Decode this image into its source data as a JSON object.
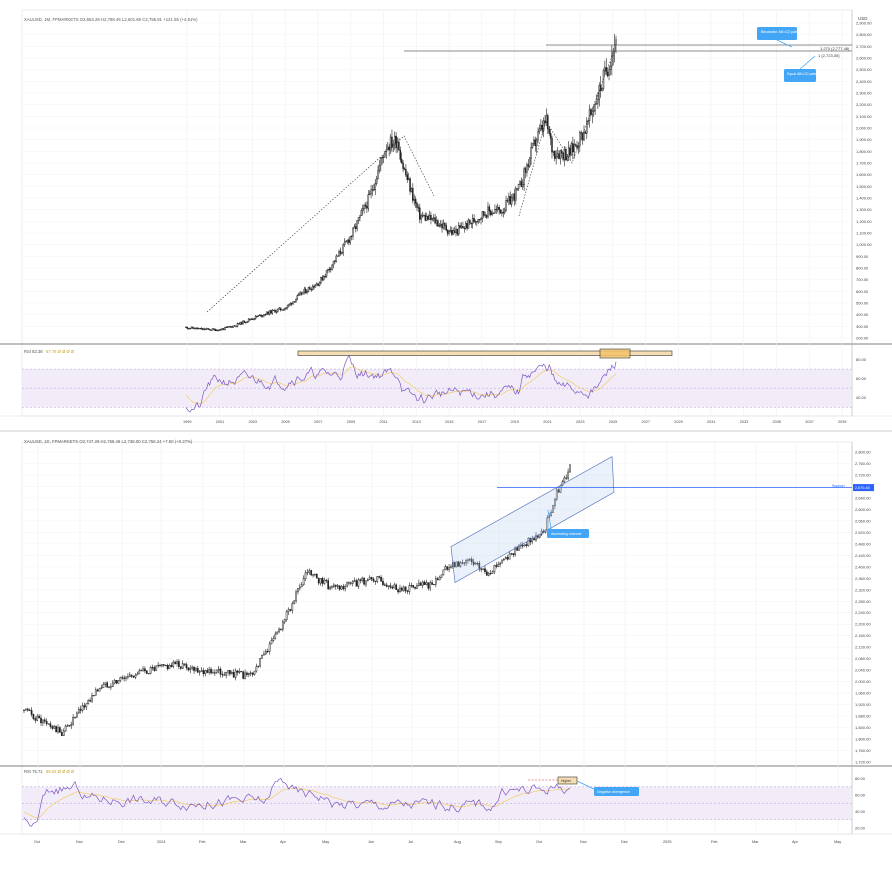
{
  "panel_top": {
    "header": "XAUUSD, 1M, FPMARKETS  O2,653.28  H2,798.46  L2,601.69  C2,755.91  +121.55 (+4.61%)",
    "currency": "USD",
    "rsi_label": "RSI  82.36",
    "rsi_extra": "67.76  Ø  Ø  Ø  Ø",
    "fib_label_1": "1.270 (2,777.48)",
    "fib_label_2": "1 (2,723.35)",
    "callout_1": "Bitcoinator AB=CD pattern",
    "callout_2": "Equal AB=CD pattern",
    "price_axis": [
      "2,900.00",
      "2,800.00",
      "2,700.00",
      "2,600.00",
      "2,500.00",
      "2,400.00",
      "2,300.00",
      "2,200.00",
      "2,100.00",
      "2,000.00",
      "1,900.00",
      "1,800.00",
      "1,700.00",
      "1,600.00",
      "1,500.00",
      "1,400.00",
      "1,300.00",
      "1,200.00",
      "1,100.00",
      "1,000.00",
      "900.00",
      "800.00",
      "700.00",
      "600.00",
      "500.00",
      "400.00",
      "300.00",
      "200.00"
    ],
    "rsi_axis": [
      "80.00",
      "60.00",
      "40.00"
    ],
    "time_axis": [
      "1999",
      "2001",
      "2003",
      "2005",
      "2007",
      "2009",
      "2011",
      "2013",
      "2015",
      "2017",
      "2019",
      "2021",
      "2023",
      "2025",
      "2027",
      "2029",
      "2031",
      "2033",
      "2035",
      "2037",
      "2039"
    ]
  },
  "panel_bottom": {
    "header": "XAUUSD, 1D, FPMARKETS  O2,747.29  H2,758.46  L2,738.00  C2,756.24  +7.50 (+0.27%)",
    "rsi_label": "RSI  75.71",
    "rsi_extra": "69.02  Ø  Ø  Ø  Ø",
    "support_label": "Support",
    "support_price": "2,676.45",
    "callout_channel": "Ascending channel",
    "callout_divergence": "Negative divergence",
    "rsi_box_label": "Higher",
    "price_axis": [
      "2,800.00",
      "2,760.00",
      "2,720.00",
      "2,680.00",
      "2,640.00",
      "2,600.00",
      "2,560.00",
      "2,520.00",
      "2,480.00",
      "2,440.00",
      "2,400.00",
      "2,360.00",
      "2,320.00",
      "2,280.00",
      "2,240.00",
      "2,200.00",
      "2,160.00",
      "2,120.00",
      "2,080.00",
      "2,040.00",
      "2,000.00",
      "1,960.00",
      "1,920.00",
      "1,880.00",
      "1,840.00",
      "1,800.00",
      "1,760.00",
      "1,720.00"
    ],
    "rsi_axis": [
      "80.00",
      "60.00",
      "40.00",
      "20.00"
    ],
    "time_axis": [
      "Oct",
      "Nov",
      "Dec",
      "2024",
      "Feb",
      "Mar",
      "Apr",
      "May",
      "Jun",
      "Jul",
      "Aug",
      "Sep",
      "Oct",
      "Nov",
      "Dec",
      "2025",
      "Feb",
      "Mar",
      "Apr",
      "May"
    ]
  },
  "colors": {
    "candle": "#222222",
    "rsi_line": "#7e57c2",
    "rsi_ma": "#f2c94c",
    "rsi_band": "#ede7f6",
    "callout": "#42a5f5",
    "support": "#2962ff",
    "highlight_box": "#f5deb3",
    "rsi_overbought_fill": "#a5d6a7",
    "rsi_oversold_fill": "#ef9a9a"
  },
  "chart_data": [
    {
      "type": "line",
      "title": "XAUUSD 1M",
      "x": [
        1999,
        2000,
        2001,
        2002,
        2003,
        2004,
        2005,
        2006,
        2007,
        2008,
        2009,
        2010,
        2011,
        2011.7,
        2012,
        2013,
        2014,
        2015,
        2016,
        2017,
        2018,
        2019,
        2020,
        2020.6,
        2021,
        2022,
        2023,
        2024,
        2024.8
      ],
      "values": [
        290,
        275,
        270,
        310,
        370,
        420,
        460,
        590,
        680,
        880,
        1100,
        1400,
        1850,
        1900,
        1680,
        1250,
        1200,
        1100,
        1180,
        1280,
        1300,
        1480,
        1900,
        2060,
        1800,
        1780,
        2000,
        2400,
        2756
      ],
      "ylim": [
        200,
        2900
      ],
      "ylabel": "USD"
    },
    {
      "type": "line",
      "title": "XAUUSD 1D",
      "x": [
        "Oct",
        "Nov",
        "Dec",
        "2024",
        "Feb",
        "Mar",
        "Apr",
        "May",
        "Jun",
        "Jul",
        "Aug",
        "Sep",
        "Oct",
        "Nov"
      ],
      "values": [
        1830,
        1990,
        2040,
        2060,
        2030,
        2180,
        2370,
        2330,
        2360,
        2420,
        2450,
        2520,
        2650,
        2756
      ],
      "ylim": [
        1720,
        2800
      ]
    }
  ]
}
